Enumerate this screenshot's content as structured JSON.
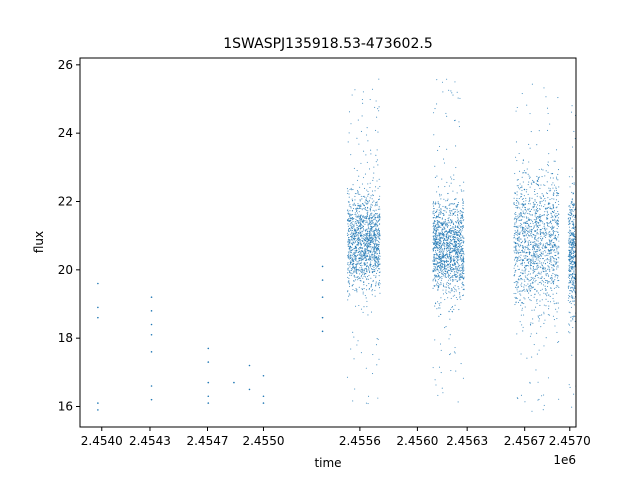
{
  "chart_data": {
    "type": "scatter",
    "title": "1SWASPJ135918.53-473602.5",
    "xlabel": "time",
    "ylabel": "flux",
    "x_offset_label": "1e6",
    "xlim": [
      2453840,
      2457030
    ],
    "ylim": [
      15.4,
      26.2
    ],
    "x_ticks": [
      2453980,
      2454290,
      2454660,
      2455020,
      2455640,
      2456010,
      2456330,
      2456700,
      2456990
    ],
    "x_tick_labels": [
      "2.4540",
      "2.4543",
      "2.4547",
      "2.4550",
      "2.4556",
      "2.4560",
      "2.4563",
      "2.4567",
      "2.4570"
    ],
    "y_ticks": [
      16,
      18,
      20,
      22,
      24,
      26
    ],
    "y_tick_labels": [
      "16",
      "18",
      "20",
      "22",
      "24",
      "26"
    ],
    "grid": false,
    "marker_color": "#1f77b4",
    "series": [
      {
        "points": [
          [
            2453955,
            18.6
          ],
          [
            2453955,
            18.9
          ],
          [
            2453955,
            19.6
          ],
          [
            2453955,
            15.9
          ],
          [
            2453955,
            16.1
          ],
          [
            2454300,
            18.1
          ],
          [
            2454300,
            18.4
          ],
          [
            2454300,
            18.8
          ],
          [
            2454300,
            17.6
          ],
          [
            2454300,
            16.6
          ],
          [
            2454300,
            16.2
          ],
          [
            2454300,
            19.2
          ],
          [
            2454665,
            16.1
          ],
          [
            2454665,
            16.7
          ],
          [
            2454665,
            17.3
          ],
          [
            2454665,
            17.7
          ],
          [
            2454665,
            16.3
          ],
          [
            2454830,
            16.7
          ],
          [
            2454930,
            17.2
          ],
          [
            2454930,
            16.5
          ],
          [
            2455020,
            16.9
          ],
          [
            2455020,
            16.3
          ],
          [
            2455020,
            16.1
          ],
          [
            2455400,
            19.2
          ],
          [
            2455400,
            19.7
          ],
          [
            2455400,
            18.6
          ],
          [
            2455400,
            18.2
          ],
          [
            2455400,
            20.1
          ]
        ]
      },
      {
        "bands": [
          {
            "x_start": 2455560,
            "x_end": 2455770,
            "y_center": 20.8,
            "spread": 0.7,
            "y_min": 15.9,
            "y_max": 25.6
          },
          {
            "x_start": 2456110,
            "x_end": 2456310,
            "y_center": 20.7,
            "spread": 0.7,
            "y_min": 15.9,
            "y_max": 25.6
          },
          {
            "x_start": 2456630,
            "x_end": 2456920,
            "y_center": 20.8,
            "spread": 1.0,
            "y_min": 15.8,
            "y_max": 25.6
          },
          {
            "x_start": 2456980,
            "x_end": 2457150,
            "y_center": 20.5,
            "spread": 0.9,
            "y_min": 15.9,
            "y_max": 25.6
          }
        ]
      }
    ]
  }
}
